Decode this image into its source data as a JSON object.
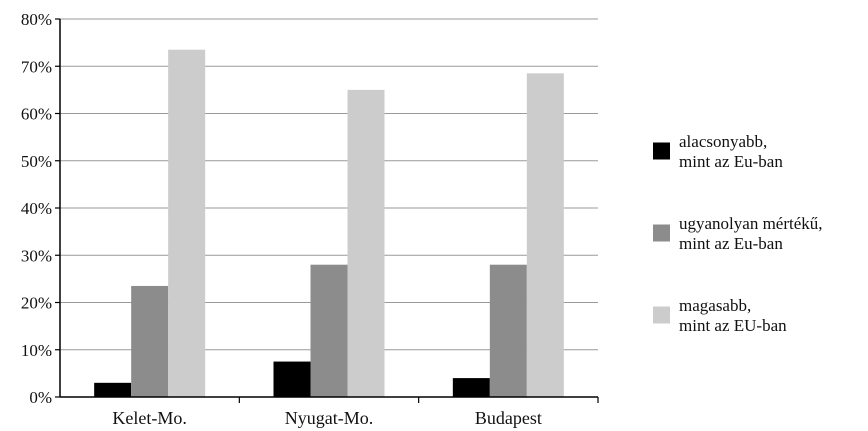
{
  "chart_data": {
    "type": "bar",
    "categories": [
      "Kelet-Mo.",
      "Nyugat-Mo.",
      "Budapest"
    ],
    "series": [
      {
        "name": "alacsonyabb, mint az Eu-ban",
        "legend_lines": [
          "alacsonyabb,",
          "mint az Eu-ban"
        ],
        "color": "#000000",
        "values": [
          3,
          7.5,
          4
        ]
      },
      {
        "name": "ugyanolyan mértékű, mint az Eu-ban",
        "legend_lines": [
          "ugyanolyan mértékű,",
          "mint az Eu-ban"
        ],
        "color": "#8c8c8c",
        "values": [
          23.5,
          28,
          28
        ]
      },
      {
        "name": "magasabb, mint az EU-ban",
        "legend_lines": [
          "magasabb,",
          "mint az EU-ban"
        ],
        "color": "#cccccc",
        "values": [
          73.5,
          65,
          68.5
        ]
      }
    ],
    "ylim": [
      0,
      80
    ],
    "y_ticks": [
      "0%",
      "10%",
      "20%",
      "30%",
      "40%",
      "50%",
      "60%",
      "70%",
      "80%"
    ],
    "grid": true,
    "legend_position": "right",
    "title": "",
    "xlabel": "",
    "ylabel": ""
  }
}
